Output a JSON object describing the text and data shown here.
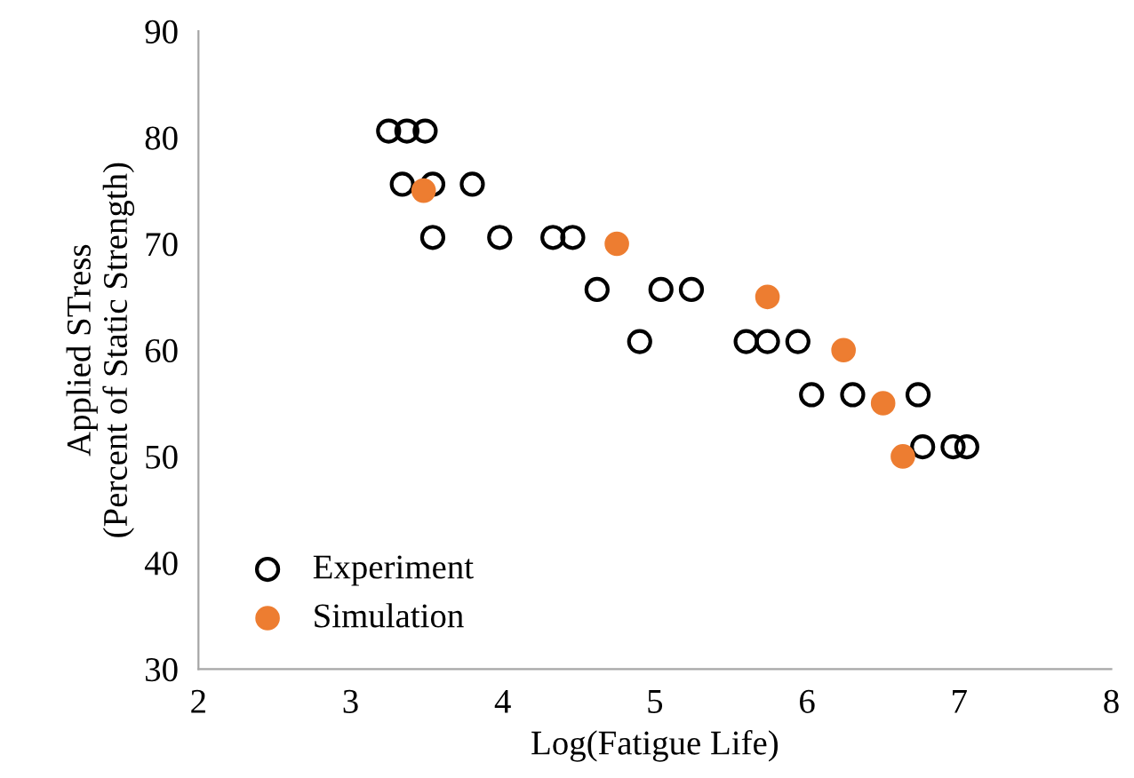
{
  "chart_data": {
    "type": "scatter",
    "xlabel": "Log(Fatigue Life)",
    "ylabel": "Applied STress\n(Percent of Static Strength)",
    "xlim": [
      2,
      8
    ],
    "xticks": [
      2,
      3,
      4,
      5,
      6,
      7,
      8
    ],
    "ylim": [
      30,
      90
    ],
    "yticks": [
      30,
      40,
      50,
      60,
      70,
      80,
      90
    ],
    "grid": false,
    "legend": "bottom left",
    "marker": "circle",
    "series": [
      {
        "name": "Experiment",
        "color": "#000000",
        "x": [
          3.25,
          3.37,
          3.49,
          3.34,
          3.54,
          3.8,
          3.54,
          3.98,
          4.33,
          4.46,
          4.62,
          5.04,
          5.24,
          4.9,
          5.6,
          5.74,
          5.94,
          6.03,
          6.3,
          6.73,
          6.76,
          6.96,
          7.05
        ],
        "values": [
          80.6,
          80.6,
          80.6,
          75.6,
          75.6,
          75.6,
          70.6,
          70.6,
          70.6,
          70.6,
          65.7,
          65.7,
          65.7,
          60.8,
          60.8,
          60.8,
          60.8,
          55.8,
          55.8,
          55.8,
          50.9,
          50.9,
          50.9
        ]
      },
      {
        "name": "Simulation",
        "color": "#ed7d31",
        "x": [
          3.48,
          4.75,
          5.74,
          6.24,
          6.5,
          6.63
        ],
        "values": [
          75,
          70,
          65,
          60,
          55,
          50
        ]
      }
    ]
  }
}
